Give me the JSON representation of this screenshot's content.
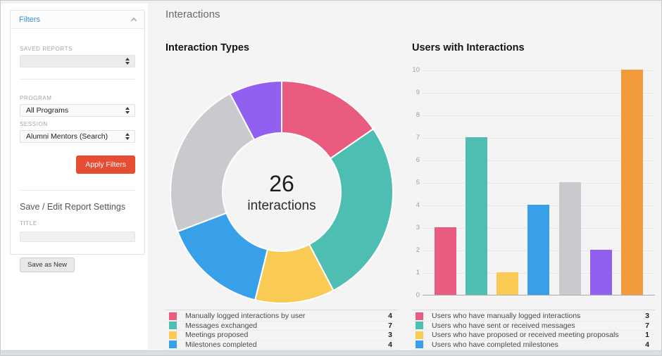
{
  "page": {
    "title": "Interactions"
  },
  "colors": {
    "accent_blue": "#3a8fd1",
    "accent_red": "#e64d33",
    "page_background": "#f4f4f5",
    "palette": {
      "pink": "#ea5c7f",
      "teal": "#4ebdb2",
      "yellow": "#facb54",
      "blue": "#38a0e8",
      "gray": "#c8cacd",
      "purple": "#9160f1",
      "orange": "#f29b3d"
    }
  },
  "sidebar": {
    "filters_title": "Filters",
    "saved_reports_label": "SAVED REPORTS",
    "saved_reports_value": "",
    "program_label": "PROGRAM",
    "program_value": "All Programs",
    "session_label": "SESSION",
    "session_value": "Alumni Mentors (Search)",
    "apply_button": "Apply Filters",
    "save_section_title": "Save / Edit Report Settings",
    "title_label": "TITLE",
    "title_value": "",
    "save_as_new_button": "Save as New"
  },
  "chart_data": [
    {
      "type": "pie",
      "subtype": "donut",
      "title": "Interaction Types",
      "center_value": "26",
      "center_label": "interactions",
      "total": 26,
      "segments": [
        {
          "label": "Manually logged interactions by user",
          "value": 4,
          "color": "#ea5c7f"
        },
        {
          "label": "Messages exchanged",
          "value": 7,
          "color": "#4ebdb2"
        },
        {
          "label": "Meetings proposed",
          "value": 3,
          "color": "#facb54"
        },
        {
          "label": "Milestones completed",
          "value": 4,
          "color": "#38a0e8"
        },
        {
          "label": "",
          "value": 6,
          "color": "#c8cacd"
        },
        {
          "label": "",
          "value": 2,
          "color": "#9160f1"
        }
      ],
      "legend_position": "bottom"
    },
    {
      "type": "bar",
      "title": "Users with Interactions",
      "ylim": [
        0,
        10
      ],
      "yticks": [
        0,
        1,
        2,
        3,
        4,
        5,
        6,
        7,
        8,
        9,
        10
      ],
      "grid": true,
      "bars": [
        {
          "value": 3,
          "color": "#ea5c7f"
        },
        {
          "value": 7,
          "color": "#4ebdb2"
        },
        {
          "value": 1,
          "color": "#facb54"
        },
        {
          "value": 4,
          "color": "#38a0e8"
        },
        {
          "value": 5,
          "color": "#c8cacd"
        },
        {
          "value": 2,
          "color": "#9160f1"
        },
        {
          "value": 10,
          "color": "#f29b3d"
        }
      ],
      "legend_position": "bottom",
      "legend": [
        {
          "label": "Users who have manually logged interactions",
          "value": 3,
          "color": "#ea5c7f"
        },
        {
          "label": "Users who have sent or received messages",
          "value": 7,
          "color": "#4ebdb2"
        },
        {
          "label": "Users who have proposed or received meeting proposals",
          "value": 1,
          "color": "#facb54"
        },
        {
          "label": "Users who have completed milestones",
          "value": 4,
          "color": "#38a0e8"
        }
      ]
    }
  ]
}
